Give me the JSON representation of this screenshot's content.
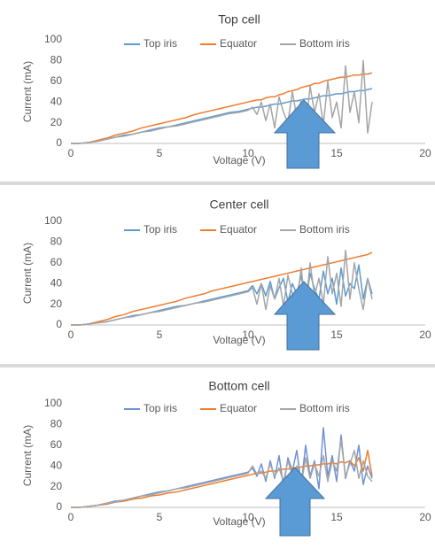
{
  "chart_data": [
    {
      "type": "line",
      "title": "Top cell",
      "x_label": "Voltage (V)",
      "y_label": "Current (mA)",
      "x": [
        0,
        0.5,
        1,
        1.5,
        2,
        2.5,
        3,
        3.5,
        4,
        4.5,
        5,
        5.5,
        6,
        6.5,
        7,
        7.5,
        8,
        8.5,
        9,
        9.5,
        10,
        10.25,
        10.5,
        10.75,
        11,
        11.25,
        11.5,
        11.75,
        12,
        12.25,
        12.5,
        12.75,
        13,
        13.25,
        13.5,
        13.75,
        14,
        14.25,
        14.5,
        14.75,
        15,
        15.25,
        15.5,
        15.75,
        16,
        16.25,
        16.5,
        16.75,
        17
      ],
      "series": [
        {
          "name": "Top iris",
          "color": "#5b9bd5",
          "values": [
            0,
            0,
            1,
            2,
            4,
            6,
            8,
            9,
            11,
            13,
            15,
            16,
            18,
            20,
            22,
            24,
            26,
            28,
            30,
            31,
            33,
            34,
            35,
            35,
            36,
            37,
            38,
            38,
            39,
            40,
            41,
            41,
            42,
            43,
            43,
            44,
            45,
            46,
            46,
            47,
            48,
            48,
            49,
            50,
            50,
            51,
            51,
            52,
            53
          ]
        },
        {
          "name": "Equator",
          "color": "#ed7d31",
          "values": [
            0,
            0,
            1,
            3,
            5,
            8,
            10,
            12,
            15,
            17,
            19,
            21,
            23,
            25,
            28,
            30,
            32,
            34,
            36,
            38,
            40,
            41,
            42,
            42,
            44,
            45,
            45,
            47,
            48,
            50,
            51,
            52,
            54,
            55,
            56,
            58,
            58,
            60,
            61,
            62,
            63,
            64,
            64,
            65,
            66,
            66,
            67,
            67,
            68
          ]
        },
        {
          "name": "Bottom iris",
          "color": "#a5a5a5",
          "values": [
            0,
            0,
            1,
            2,
            4,
            6,
            7,
            9,
            11,
            12,
            14,
            16,
            17,
            19,
            21,
            23,
            25,
            27,
            29,
            30,
            32,
            35,
            28,
            40,
            22,
            38,
            15,
            45,
            30,
            20,
            50,
            25,
            42,
            12,
            55,
            30,
            48,
            18,
            60,
            25,
            40,
            15,
            75,
            30,
            50,
            20,
            80,
            10,
            40
          ]
        }
      ],
      "xlim": [
        0,
        20
      ],
      "xticks": [
        0,
        5,
        10,
        15,
        20
      ],
      "ylim": [
        0,
        100
      ],
      "yticks": [
        0,
        20,
        40,
        60,
        80,
        100
      ],
      "legend": "top"
    },
    {
      "type": "line",
      "title": "Center cell",
      "x_label": "Voltage (V)",
      "y_label": "Current (mA)",
      "x": [
        0,
        0.5,
        1,
        1.5,
        2,
        2.5,
        3,
        3.5,
        4,
        4.5,
        5,
        5.5,
        6,
        6.5,
        7,
        7.5,
        8,
        8.5,
        9,
        9.5,
        10,
        10.25,
        10.5,
        10.75,
        11,
        11.25,
        11.5,
        11.75,
        12,
        12.25,
        12.5,
        12.75,
        13,
        13.25,
        13.5,
        13.75,
        14,
        14.25,
        14.5,
        14.75,
        15,
        15.25,
        15.5,
        15.75,
        16,
        16.25,
        16.5,
        16.75,
        17
      ],
      "series": [
        {
          "name": "Top iris",
          "color": "#5b9bd5",
          "values": [
            0,
            0,
            1,
            2,
            3,
            5,
            7,
            9,
            10,
            12,
            14,
            16,
            18,
            19,
            21,
            23,
            25,
            27,
            29,
            31,
            33,
            38,
            30,
            40,
            28,
            42,
            25,
            36,
            45,
            22,
            40,
            30,
            48,
            20,
            50,
            35,
            25,
            52,
            30,
            45,
            20,
            55,
            28,
            40,
            35,
            58,
            25,
            45,
            30
          ]
        },
        {
          "name": "Equator",
          "color": "#ed7d31",
          "values": [
            0,
            0,
            1,
            3,
            5,
            8,
            10,
            13,
            15,
            17,
            19,
            21,
            23,
            26,
            28,
            30,
            33,
            35,
            37,
            39,
            41,
            42,
            43,
            44,
            45,
            46,
            47,
            48,
            49,
            50,
            51,
            52,
            53,
            54,
            55,
            56,
            57,
            58,
            59,
            60,
            61,
            62,
            63,
            64,
            65,
            66,
            67,
            68,
            70
          ]
        },
        {
          "name": "Bottom iris",
          "color": "#a5a5a5",
          "values": [
            0,
            0,
            1,
            2,
            3,
            5,
            7,
            8,
            10,
            12,
            13,
            15,
            17,
            19,
            21,
            22,
            24,
            26,
            28,
            30,
            32,
            36,
            20,
            40,
            15,
            38,
            25,
            45,
            18,
            48,
            30,
            22,
            55,
            15,
            60,
            28,
            45,
            20,
            66,
            30,
            50,
            18,
            72,
            25,
            60,
            35,
            15,
            45,
            25
          ]
        }
      ],
      "xlim": [
        0,
        20
      ],
      "xticks": [
        0,
        5,
        10,
        15,
        20
      ],
      "ylim": [
        0,
        100
      ],
      "yticks": [
        0,
        20,
        40,
        60,
        80,
        100
      ],
      "legend": "top"
    },
    {
      "type": "line",
      "title": "Bottom cell",
      "x_label": "Voltage (V)",
      "y_label": "Current (mA)",
      "x": [
        0,
        0.5,
        1,
        1.5,
        2,
        2.5,
        3,
        3.5,
        4,
        4.5,
        5,
        5.5,
        6,
        6.5,
        7,
        7.5,
        8,
        8.5,
        9,
        9.5,
        10,
        10.25,
        10.5,
        10.75,
        11,
        11.25,
        11.5,
        11.75,
        12,
        12.25,
        12.5,
        12.75,
        13,
        13.25,
        13.5,
        13.75,
        14,
        14.25,
        14.5,
        14.75,
        15,
        15.25,
        15.5,
        15.75,
        16,
        16.25,
        16.5,
        16.75,
        17
      ],
      "series": [
        {
          "name": "Top iris",
          "color": "#6f93d2",
          "values": [
            0,
            0,
            1,
            2,
            4,
            6,
            7,
            9,
            11,
            13,
            15,
            16,
            18,
            20,
            22,
            24,
            26,
            28,
            30,
            32,
            34,
            38,
            30,
            42,
            25,
            45,
            28,
            50,
            20,
            48,
            35,
            55,
            22,
            60,
            30,
            45,
            18,
            77,
            30,
            50,
            25,
            70,
            28,
            45,
            35,
            60,
            22,
            40,
            28
          ]
        },
        {
          "name": "Equator",
          "color": "#ed7d31",
          "values": [
            0,
            0,
            1,
            2,
            3,
            5,
            6,
            8,
            9,
            11,
            12,
            14,
            15,
            17,
            19,
            21,
            23,
            25,
            27,
            29,
            31,
            32,
            33,
            33,
            34,
            35,
            35,
            36,
            37,
            37,
            38,
            38,
            39,
            40,
            40,
            41,
            41,
            42,
            42,
            43,
            42,
            44,
            43,
            45,
            40,
            48,
            35,
            55,
            30
          ]
        },
        {
          "name": "Bottom iris",
          "color": "#a5a5a5",
          "values": [
            0,
            0,
            1,
            2,
            4,
            5,
            7,
            9,
            11,
            12,
            14,
            16,
            18,
            19,
            21,
            23,
            25,
            27,
            29,
            31,
            33,
            40,
            32,
            35,
            28,
            42,
            30,
            38,
            25,
            45,
            30,
            40,
            22,
            48,
            28,
            42,
            30,
            50,
            25,
            45,
            35,
            65,
            30,
            42,
            55,
            28,
            45,
            30,
            25
          ]
        }
      ],
      "xlim": [
        0,
        20
      ],
      "xticks": [
        0,
        5,
        10,
        15,
        20
      ],
      "ylim": [
        0,
        100
      ],
      "yticks": [
        0,
        20,
        40,
        60,
        80,
        100
      ],
      "legend": "top"
    }
  ]
}
